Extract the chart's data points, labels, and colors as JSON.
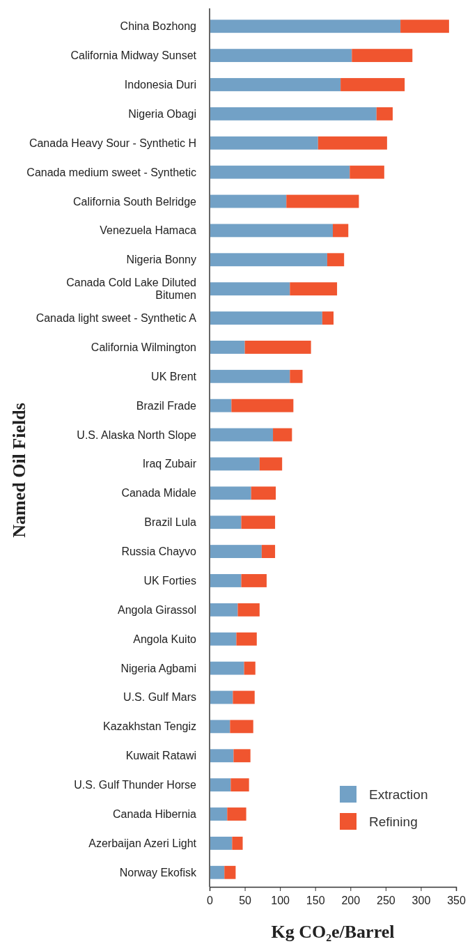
{
  "chart_data": {
    "type": "bar",
    "orientation": "horizontal",
    "stacked": true,
    "xlabel": "Kg CO₂e/Barrel",
    "ylabel": "Named Oil Fields",
    "categories": [
      "China Bozhong",
      "California Midway Sunset",
      "Indonesia Duri",
      "Nigeria Obagi",
      "Canada Heavy Sour - Synthetic H",
      "Canada medium sweet - Synthetic",
      "California South Belridge",
      "Venezuela Hamaca",
      "Nigeria Bonny",
      "Canada Cold Lake Diluted Bitumen",
      "Canada light sweet - Synthetic A",
      "California Wilmington",
      "UK Brent",
      "Brazil Frade",
      "U.S. Alaska North Slope",
      "Iraq Zubair",
      "Canada Midale",
      "Brazil Lula",
      "Russia Chayvo",
      "UK Forties",
      "Angola Girassol",
      "Angola Kuito",
      "Nigeria Agbami",
      "U.S. Gulf Mars",
      "Kazakhstan Tengiz",
      "Kuwait Ratawi",
      "U.S. Gulf Thunder Horse",
      "Canada Hibernia",
      "Azerbaijan Azeri Light",
      "Norway Ekofisk"
    ],
    "series": [
      {
        "name": "Extraction",
        "color": "#72a1c6",
        "values": [
          271,
          202,
          186,
          237,
          154,
          199,
          109,
          175,
          167,
          114,
          160,
          50,
          114,
          31,
          90,
          71,
          59,
          45,
          74,
          45,
          40,
          38,
          49,
          33,
          29,
          34,
          30,
          25,
          32,
          21
        ]
      },
      {
        "name": "Refining",
        "color": "#f0552f",
        "values": [
          69,
          86,
          91,
          23,
          98,
          49,
          103,
          22,
          24,
          67,
          16,
          94,
          18,
          88,
          27,
          32,
          35,
          48,
          19,
          36,
          31,
          29,
          16,
          31,
          33,
          24,
          26,
          27,
          15,
          16
        ]
      }
    ],
    "xlim": [
      0,
      350
    ],
    "xticks": [
      0,
      50,
      100,
      150,
      200,
      250,
      300,
      350
    ],
    "legend": "bottom right",
    "grid": false
  }
}
